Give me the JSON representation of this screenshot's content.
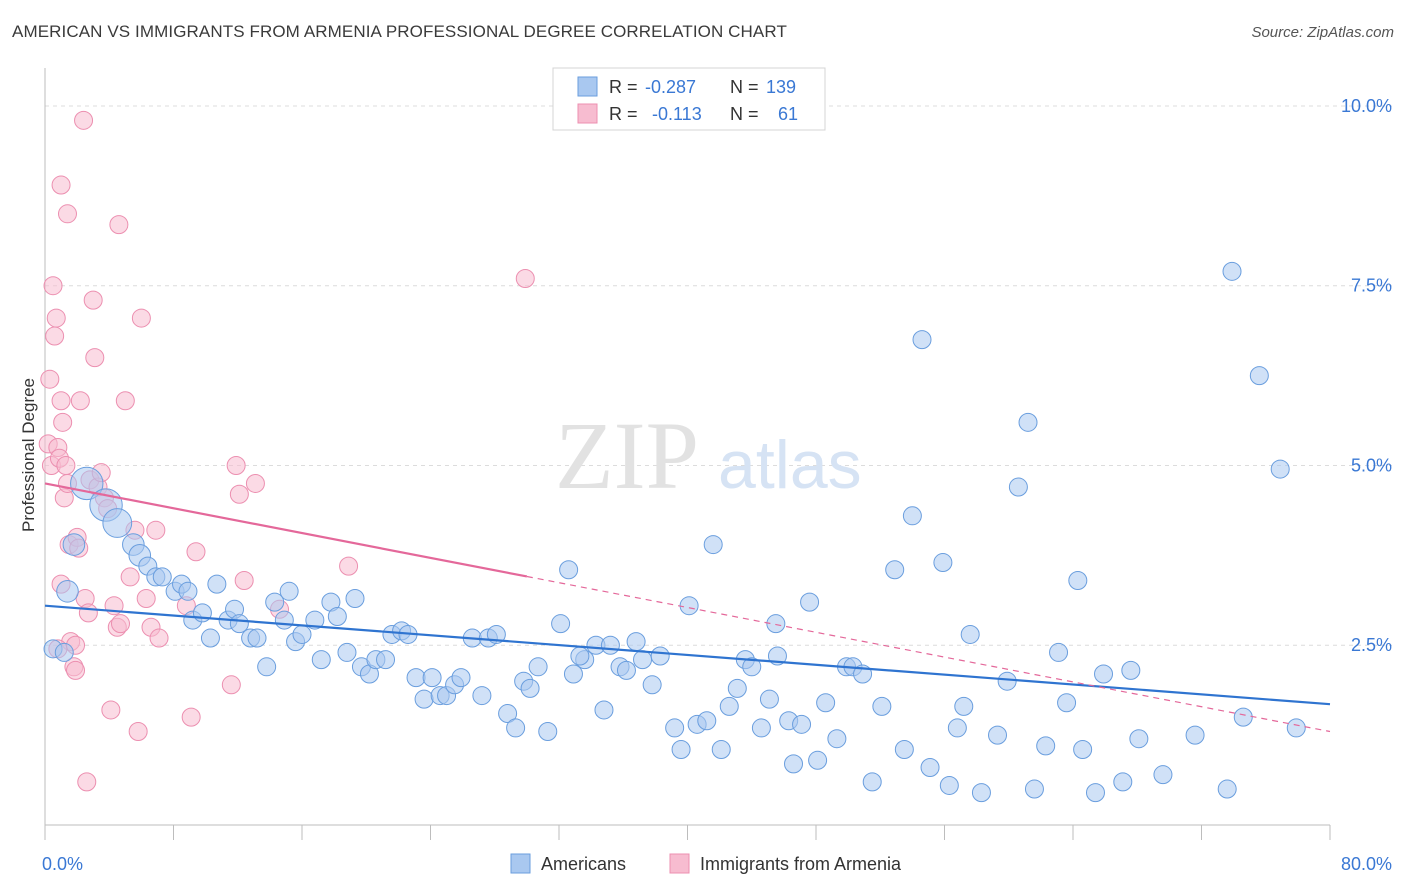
{
  "title": "AMERICAN VS IMMIGRANTS FROM ARMENIA PROFESSIONAL DEGREE CORRELATION CHART",
  "source": "Source: ZipAtlas.com",
  "watermark": {
    "zip": "ZIP",
    "atlas": "atlas"
  },
  "colors": {
    "blue_fill": "#a9c8f0",
    "blue_stroke": "#6a9ede",
    "blue_line": "#2f74d0",
    "pink_fill": "#f7bcd0",
    "pink_stroke": "#ec8fb0",
    "pink_line": "#e4689a",
    "value_text": "#3a78d4",
    "grid": "#dcdcdc",
    "axis": "#bdbdbd"
  },
  "stats": [
    {
      "r_label": "R =",
      "r_value": "-0.287",
      "n_label": "N =",
      "n_value": "139",
      "color": "blue"
    },
    {
      "r_label": "R =",
      "r_value": "-0.113",
      "n_label": "N =",
      "n_value": "61",
      "color": "pink"
    }
  ],
  "chart_data": {
    "type": "scatter",
    "title": "AMERICAN VS IMMIGRANTS FROM ARMENIA PROFESSIONAL DEGREE CORRELATION CHART",
    "xlabel": "",
    "ylabel": "Professional Degree",
    "xlim": [
      0,
      80
    ],
    "ylim": [
      0,
      10.5
    ],
    "x_tick_labels": [
      "0.0%",
      "80.0%"
    ],
    "y_ticks": [
      2.5,
      5.0,
      7.5,
      10.0
    ],
    "y_tick_labels": [
      "2.5%",
      "5.0%",
      "7.5%",
      "10.0%"
    ],
    "grid": true,
    "legend_position": "bottom-center",
    "series": [
      {
        "name": "Americans",
        "color": "blue",
        "trend": {
          "x": [
            0,
            80
          ],
          "y": [
            3.05,
            1.68
          ],
          "solid_to": 80
        },
        "points": [
          [
            0.5,
            2.45,
            10
          ],
          [
            1.2,
            2.4,
            10
          ],
          [
            1.4,
            3.25,
            12
          ],
          [
            1.8,
            3.9,
            12
          ],
          [
            2.6,
            4.75,
            18
          ],
          [
            3.8,
            4.45,
            18
          ],
          [
            4.5,
            4.2,
            16
          ],
          [
            5.5,
            3.9,
            12
          ],
          [
            5.9,
            3.75,
            12
          ],
          [
            6.4,
            3.6,
            10
          ],
          [
            6.9,
            3.45,
            10
          ],
          [
            7.3,
            3.45,
            10
          ],
          [
            8.1,
            3.25,
            10
          ],
          [
            8.5,
            3.35,
            10
          ],
          [
            8.9,
            3.25,
            10
          ],
          [
            9.2,
            2.85,
            10
          ],
          [
            9.8,
            2.95,
            10
          ],
          [
            10.3,
            2.6,
            10
          ],
          [
            10.7,
            3.35,
            10
          ],
          [
            11.4,
            2.85,
            10
          ],
          [
            11.8,
            3.0,
            10
          ],
          [
            12.1,
            2.8,
            10
          ],
          [
            12.8,
            2.6,
            10
          ],
          [
            13.2,
            2.6,
            10
          ],
          [
            13.8,
            2.2,
            10
          ],
          [
            14.3,
            3.1,
            10
          ],
          [
            14.9,
            2.85,
            10
          ],
          [
            15.2,
            3.25,
            10
          ],
          [
            15.6,
            2.55,
            10
          ],
          [
            16.0,
            2.65,
            10
          ],
          [
            16.8,
            2.85,
            10
          ],
          [
            17.2,
            2.3,
            10
          ],
          [
            17.8,
            3.1,
            10
          ],
          [
            18.2,
            2.9,
            10
          ],
          [
            18.8,
            2.4,
            10
          ],
          [
            19.3,
            3.15,
            10
          ],
          [
            19.7,
            2.2,
            10
          ],
          [
            20.2,
            2.1,
            10
          ],
          [
            20.6,
            2.3,
            10
          ],
          [
            21.2,
            2.3,
            10
          ],
          [
            21.6,
            2.65,
            10
          ],
          [
            22.2,
            2.7,
            10
          ],
          [
            22.6,
            2.65,
            10
          ],
          [
            23.1,
            2.05,
            10
          ],
          [
            23.6,
            1.75,
            10
          ],
          [
            24.1,
            2.05,
            10
          ],
          [
            24.6,
            1.8,
            10
          ],
          [
            25.0,
            1.8,
            10
          ],
          [
            25.5,
            1.95,
            10
          ],
          [
            25.9,
            2.05,
            10
          ],
          [
            26.6,
            2.6,
            10
          ],
          [
            27.2,
            1.8,
            10
          ],
          [
            27.6,
            2.6,
            10
          ],
          [
            28.1,
            2.65,
            10
          ],
          [
            28.8,
            1.55,
            10
          ],
          [
            29.3,
            1.35,
            10
          ],
          [
            29.8,
            2.0,
            10
          ],
          [
            30.2,
            1.9,
            10
          ],
          [
            30.7,
            2.2,
            10
          ],
          [
            31.3,
            1.3,
            10
          ],
          [
            32.1,
            2.8,
            10
          ],
          [
            32.6,
            3.55,
            10
          ],
          [
            32.9,
            2.1,
            10
          ],
          [
            33.6,
            2.3,
            10
          ],
          [
            34.3,
            2.5,
            10
          ],
          [
            34.8,
            1.6,
            10
          ],
          [
            35.2,
            2.5,
            10
          ],
          [
            35.8,
            2.2,
            10
          ],
          [
            36.2,
            2.15,
            10
          ],
          [
            36.8,
            2.55,
            10
          ],
          [
            37.2,
            2.3,
            10
          ],
          [
            37.8,
            1.95,
            10
          ],
          [
            38.3,
            2.35,
            10
          ],
          [
            39.2,
            1.35,
            10
          ],
          [
            39.6,
            1.05,
            10
          ],
          [
            40.1,
            3.05,
            10
          ],
          [
            40.6,
            1.4,
            10
          ],
          [
            41.2,
            1.45,
            10
          ],
          [
            41.6,
            3.9,
            10
          ],
          [
            42.1,
            1.05,
            10
          ],
          [
            42.6,
            1.65,
            10
          ],
          [
            43.1,
            1.9,
            10
          ],
          [
            43.6,
            2.3,
            10
          ],
          [
            44.0,
            2.2,
            10
          ],
          [
            44.6,
            1.35,
            10
          ],
          [
            45.1,
            1.75,
            10
          ],
          [
            45.5,
            2.8,
            10
          ],
          [
            46.3,
            1.45,
            10
          ],
          [
            46.6,
            0.85,
            10
          ],
          [
            47.1,
            1.4,
            10
          ],
          [
            47.6,
            3.1,
            10
          ],
          [
            48.1,
            0.9,
            10
          ],
          [
            48.6,
            1.7,
            10
          ],
          [
            49.3,
            1.2,
            10
          ],
          [
            49.9,
            2.2,
            10
          ],
          [
            50.3,
            2.2,
            10
          ],
          [
            50.9,
            2.1,
            10
          ],
          [
            51.5,
            0.6,
            10
          ],
          [
            52.1,
            1.65,
            10
          ],
          [
            52.9,
            3.55,
            10
          ],
          [
            53.5,
            1.05,
            10
          ],
          [
            54.0,
            4.3,
            10
          ],
          [
            54.6,
            6.75,
            10
          ],
          [
            55.1,
            0.8,
            10
          ],
          [
            55.9,
            3.65,
            10
          ],
          [
            56.3,
            0.55,
            10
          ],
          [
            56.8,
            1.35,
            10
          ],
          [
            57.2,
            1.65,
            10
          ],
          [
            57.6,
            2.65,
            10
          ],
          [
            58.3,
            0.45,
            10
          ],
          [
            59.3,
            1.25,
            10
          ],
          [
            59.9,
            2.0,
            10
          ],
          [
            60.6,
            4.7,
            10
          ],
          [
            61.2,
            5.6,
            10
          ],
          [
            61.6,
            0.5,
            10
          ],
          [
            62.3,
            1.1,
            10
          ],
          [
            63.1,
            2.4,
            10
          ],
          [
            63.6,
            1.7,
            10
          ],
          [
            64.3,
            3.4,
            10
          ],
          [
            64.6,
            1.05,
            10
          ],
          [
            65.4,
            0.45,
            10
          ],
          [
            65.9,
            2.1,
            10
          ],
          [
            67.1,
            0.6,
            10
          ],
          [
            67.6,
            2.15,
            10
          ],
          [
            68.1,
            1.2,
            10
          ],
          [
            69.6,
            0.7,
            10
          ],
          [
            71.6,
            1.25,
            10
          ],
          [
            73.6,
            0.5,
            10
          ],
          [
            74.6,
            1.5,
            10
          ],
          [
            75.6,
            6.25,
            10
          ],
          [
            76.9,
            4.95,
            10
          ],
          [
            77.9,
            1.35,
            10
          ],
          [
            73.9,
            7.7,
            10
          ],
          [
            45.6,
            2.35,
            10
          ],
          [
            33.3,
            2.35,
            10
          ]
        ]
      },
      {
        "name": "Immigrants from Armenia",
        "color": "pink",
        "trend": {
          "x": [
            0,
            80
          ],
          "y": [
            4.75,
            1.3
          ],
          "solid_to": 30
        },
        "points": [
          [
            0.2,
            5.3,
            10
          ],
          [
            0.3,
            6.2,
            10
          ],
          [
            0.4,
            5.0,
            10
          ],
          [
            0.5,
            7.5,
            10
          ],
          [
            0.6,
            6.8,
            10
          ],
          [
            0.7,
            7.05,
            10
          ],
          [
            0.8,
            5.25,
            10
          ],
          [
            0.9,
            5.1,
            10
          ],
          [
            1.0,
            5.9,
            10
          ],
          [
            1.1,
            5.6,
            10
          ],
          [
            1.2,
            4.55,
            10
          ],
          [
            1.3,
            5.0,
            10
          ],
          [
            1.4,
            4.75,
            10
          ],
          [
            1.5,
            3.9,
            10
          ],
          [
            1.6,
            2.55,
            10
          ],
          [
            1.8,
            2.2,
            10
          ],
          [
            1.9,
            2.15,
            10
          ],
          [
            2.0,
            4.0,
            10
          ],
          [
            2.1,
            3.85,
            10
          ],
          [
            2.2,
            5.9,
            10
          ],
          [
            2.4,
            9.8,
            10
          ],
          [
            2.5,
            3.15,
            10
          ],
          [
            2.7,
            2.95,
            10
          ],
          [
            2.8,
            4.8,
            10
          ],
          [
            3.0,
            7.3,
            10
          ],
          [
            3.1,
            6.5,
            10
          ],
          [
            3.3,
            4.7,
            10
          ],
          [
            3.5,
            4.9,
            10
          ],
          [
            3.7,
            4.55,
            10
          ],
          [
            3.9,
            4.4,
            10
          ],
          [
            4.1,
            1.6,
            10
          ],
          [
            4.3,
            3.05,
            10
          ],
          [
            4.5,
            2.75,
            10
          ],
          [
            4.7,
            2.8,
            10
          ],
          [
            5.0,
            5.9,
            10
          ],
          [
            5.3,
            3.45,
            10
          ],
          [
            5.6,
            4.1,
            10
          ],
          [
            5.8,
            1.3,
            10
          ],
          [
            6.0,
            7.05,
            10
          ],
          [
            6.3,
            3.15,
            10
          ],
          [
            6.6,
            2.75,
            10
          ],
          [
            6.9,
            4.1,
            10
          ],
          [
            7.1,
            2.6,
            10
          ],
          [
            8.8,
            3.05,
            10
          ],
          [
            9.1,
            1.5,
            10
          ],
          [
            9.4,
            3.8,
            10
          ],
          [
            11.6,
            1.95,
            10
          ],
          [
            11.9,
            5.0,
            10
          ],
          [
            12.1,
            4.6,
            10
          ],
          [
            12.4,
            3.4,
            10
          ],
          [
            13.1,
            4.75,
            10
          ],
          [
            14.6,
            3.0,
            10
          ],
          [
            18.9,
            3.6,
            10
          ],
          [
            29.9,
            7.6,
            10
          ],
          [
            1.0,
            8.9,
            10
          ],
          [
            1.4,
            8.5,
            10
          ],
          [
            4.6,
            8.35,
            10
          ],
          [
            2.6,
            0.6,
            10
          ],
          [
            0.8,
            2.45,
            10
          ],
          [
            1.0,
            3.35,
            10
          ],
          [
            1.9,
            2.5,
            10
          ]
        ]
      }
    ]
  },
  "legend": {
    "americans": "Americans",
    "armenia": "Immigrants from Armenia"
  }
}
